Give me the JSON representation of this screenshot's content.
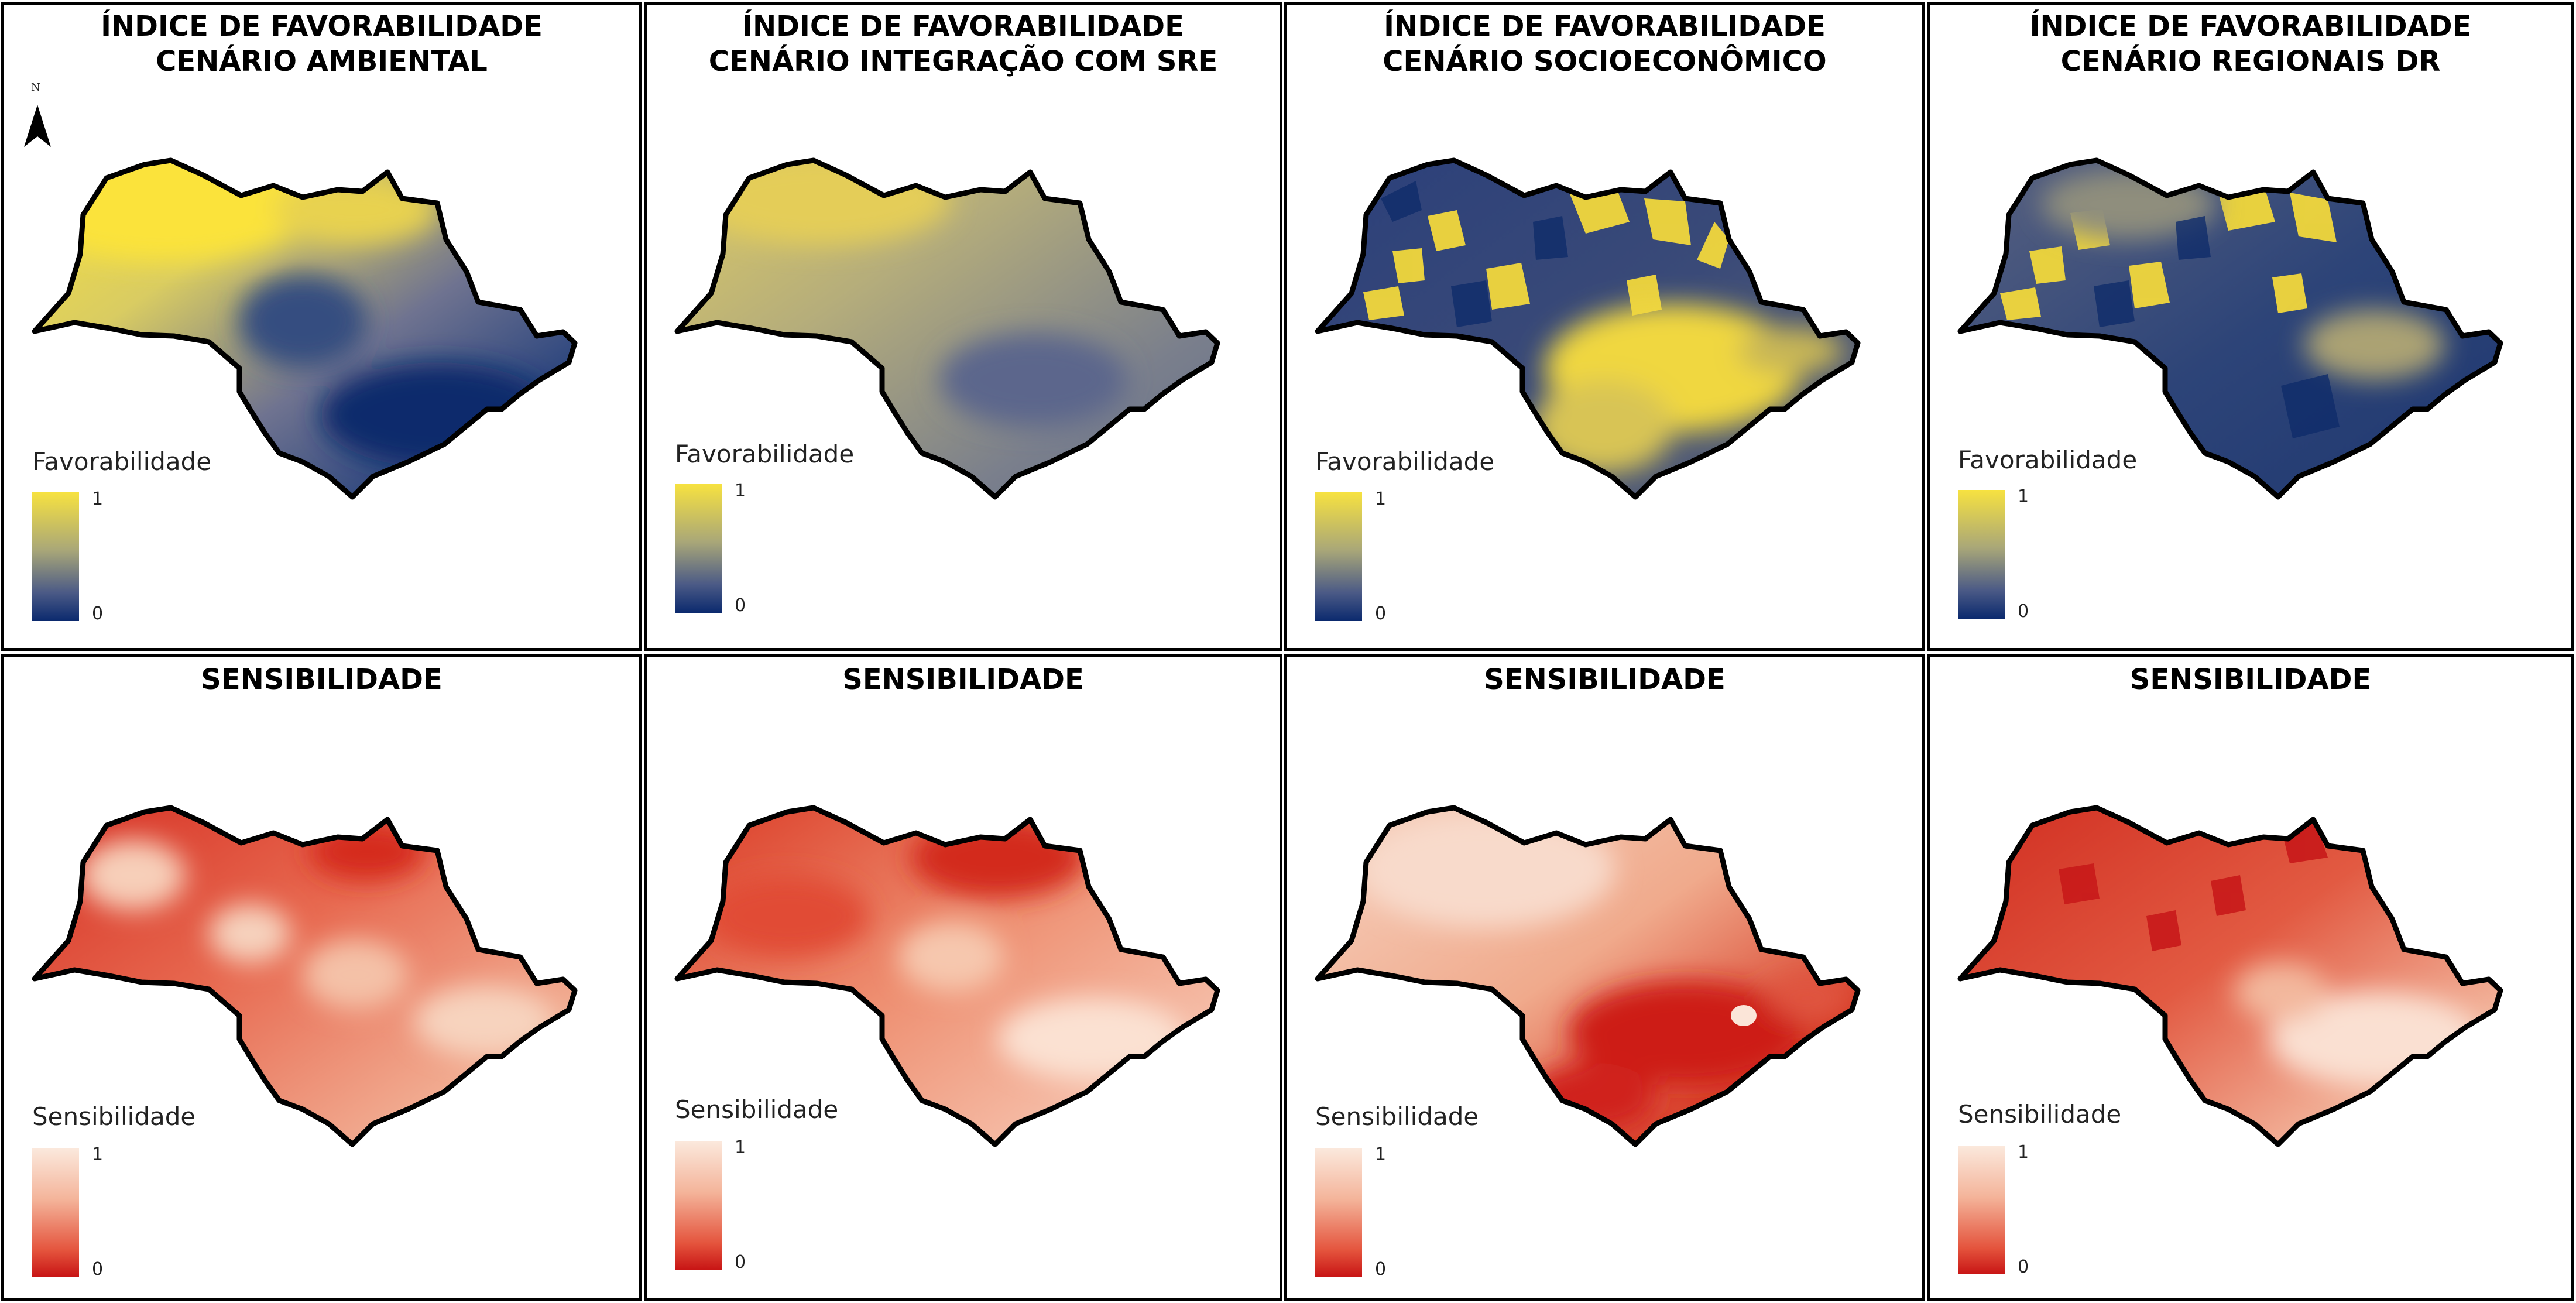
{
  "north_label": "N",
  "panels": [
    {
      "title_line1": "ÍNDICE DE FAVORABILIDADE",
      "title_line2": "CENÁRIO AMBIENTAL",
      "legend_title": "Favorabilidade",
      "max_label": "1",
      "min_label": "0",
      "palette": "favorability",
      "colors": [
        "#f7e240",
        "#0b2a6e"
      ]
    },
    {
      "title_line1": "ÍNDICE DE FAVORABILIDADE",
      "title_line2": "CENÁRIO INTEGRAÇÃO COM SRE",
      "legend_title": "Favorabilidade",
      "max_label": "1",
      "min_label": "0",
      "palette": "favorability",
      "colors": [
        "#f7e240",
        "#0b2a6e"
      ]
    },
    {
      "title_line1": "ÍNDICE DE FAVORABILIDADE",
      "title_line2": "CENÁRIO SOCIOECONÔMICO",
      "legend_title": "Favorabilidade",
      "max_label": "1",
      "min_label": "0",
      "palette": "favorability",
      "colors": [
        "#f7e240",
        "#0b2a6e"
      ]
    },
    {
      "title_line1": "ÍNDICE DE FAVORABILIDADE",
      "title_line2": "CENÁRIO REGIONAIS DR",
      "legend_title": "Favorabilidade",
      "max_label": "1",
      "min_label": "0",
      "palette": "favorability",
      "colors": [
        "#f7e240",
        "#0b2a6e"
      ]
    },
    {
      "title_line1": "SENSIBILIDADE",
      "title_line2": "",
      "legend_title": "Sensibilidade",
      "max_label": "1",
      "min_label": "0",
      "palette": "sensitivity",
      "colors": [
        "#fbe9dd",
        "#c81515"
      ]
    },
    {
      "title_line1": "SENSIBILIDADE",
      "title_line2": "",
      "legend_title": "Sensibilidade",
      "max_label": "1",
      "min_label": "0",
      "palette": "sensitivity",
      "colors": [
        "#fbe9dd",
        "#c81515"
      ]
    },
    {
      "title_line1": "SENSIBILIDADE",
      "title_line2": "",
      "legend_title": "Sensibilidade",
      "max_label": "1",
      "min_label": "0",
      "palette": "sensitivity",
      "colors": [
        "#fbe9dd",
        "#c81515"
      ]
    },
    {
      "title_line1": "SENSIBILIDADE",
      "title_line2": "",
      "legend_title": "Sensibilidade",
      "max_label": "1",
      "min_label": "0",
      "palette": "sensitivity",
      "colors": [
        "#fbe9dd",
        "#c81515"
      ]
    }
  ]
}
